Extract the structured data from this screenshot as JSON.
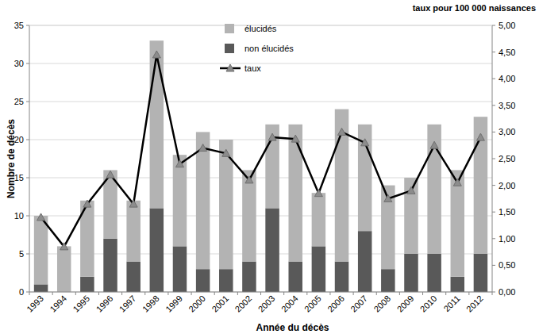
{
  "chart_data": {
    "type": "bar",
    "title": "taux pour 100 000 naissances",
    "x_label": "Année du décès",
    "y_label": "Nombre de décès",
    "categories": [
      "1993",
      "1994",
      "1995",
      "1996",
      "1997",
      "1998",
      "1999",
      "2000",
      "2001",
      "2002",
      "2003",
      "2004",
      "2005",
      "2006",
      "2007",
      "2008",
      "2009",
      "2010",
      "2011",
      "2012"
    ],
    "stacked": true,
    "grid": true,
    "legend": "top",
    "ylim": [
      0,
      35
    ],
    "yticks": [
      0,
      5,
      10,
      15,
      20,
      25,
      30,
      35
    ],
    "y2lim": [
      0,
      5
    ],
    "y2ticks": [
      {
        "value": 0,
        "label": "0,00"
      },
      {
        "value": 0.5,
        "label": "0,50"
      },
      {
        "value": 1,
        "label": "1,00"
      },
      {
        "value": 1.5,
        "label": "1,50"
      },
      {
        "value": 2,
        "label": "2,00"
      },
      {
        "value": 2.5,
        "label": "2,50"
      },
      {
        "value": 3,
        "label": "3,00"
      },
      {
        "value": 3.5,
        "label": "3,50"
      },
      {
        "value": 4,
        "label": "4,00"
      },
      {
        "value": 4.5,
        "label": "4,50"
      },
      {
        "value": 5,
        "label": "5,00"
      }
    ],
    "series": [
      {
        "name": "non élucidés",
        "type": "bar",
        "color": "#595959",
        "values": [
          1,
          0,
          2,
          7,
          4,
          11,
          6,
          3,
          3,
          4,
          11,
          4,
          6,
          4,
          8,
          3,
          5,
          5,
          2,
          5
        ]
      },
      {
        "name": "élucidés",
        "type": "bar",
        "color": "#b3b3b3",
        "values": [
          9,
          6,
          10,
          9,
          8,
          22,
          12,
          18,
          17,
          12,
          11,
          18,
          7,
          20,
          14,
          11,
          10,
          17,
          14,
          18
        ]
      },
      {
        "name": "taux",
        "type": "line",
        "axis": "y2",
        "color": "#000000",
        "marker": "triangle",
        "values": [
          1.4,
          0.85,
          1.65,
          2.2,
          1.65,
          4.45,
          2.4,
          2.7,
          2.6,
          2.1,
          2.9,
          2.87,
          1.85,
          3.0,
          2.8,
          1.75,
          1.9,
          2.75,
          2.05,
          2.9
        ]
      }
    ]
  }
}
